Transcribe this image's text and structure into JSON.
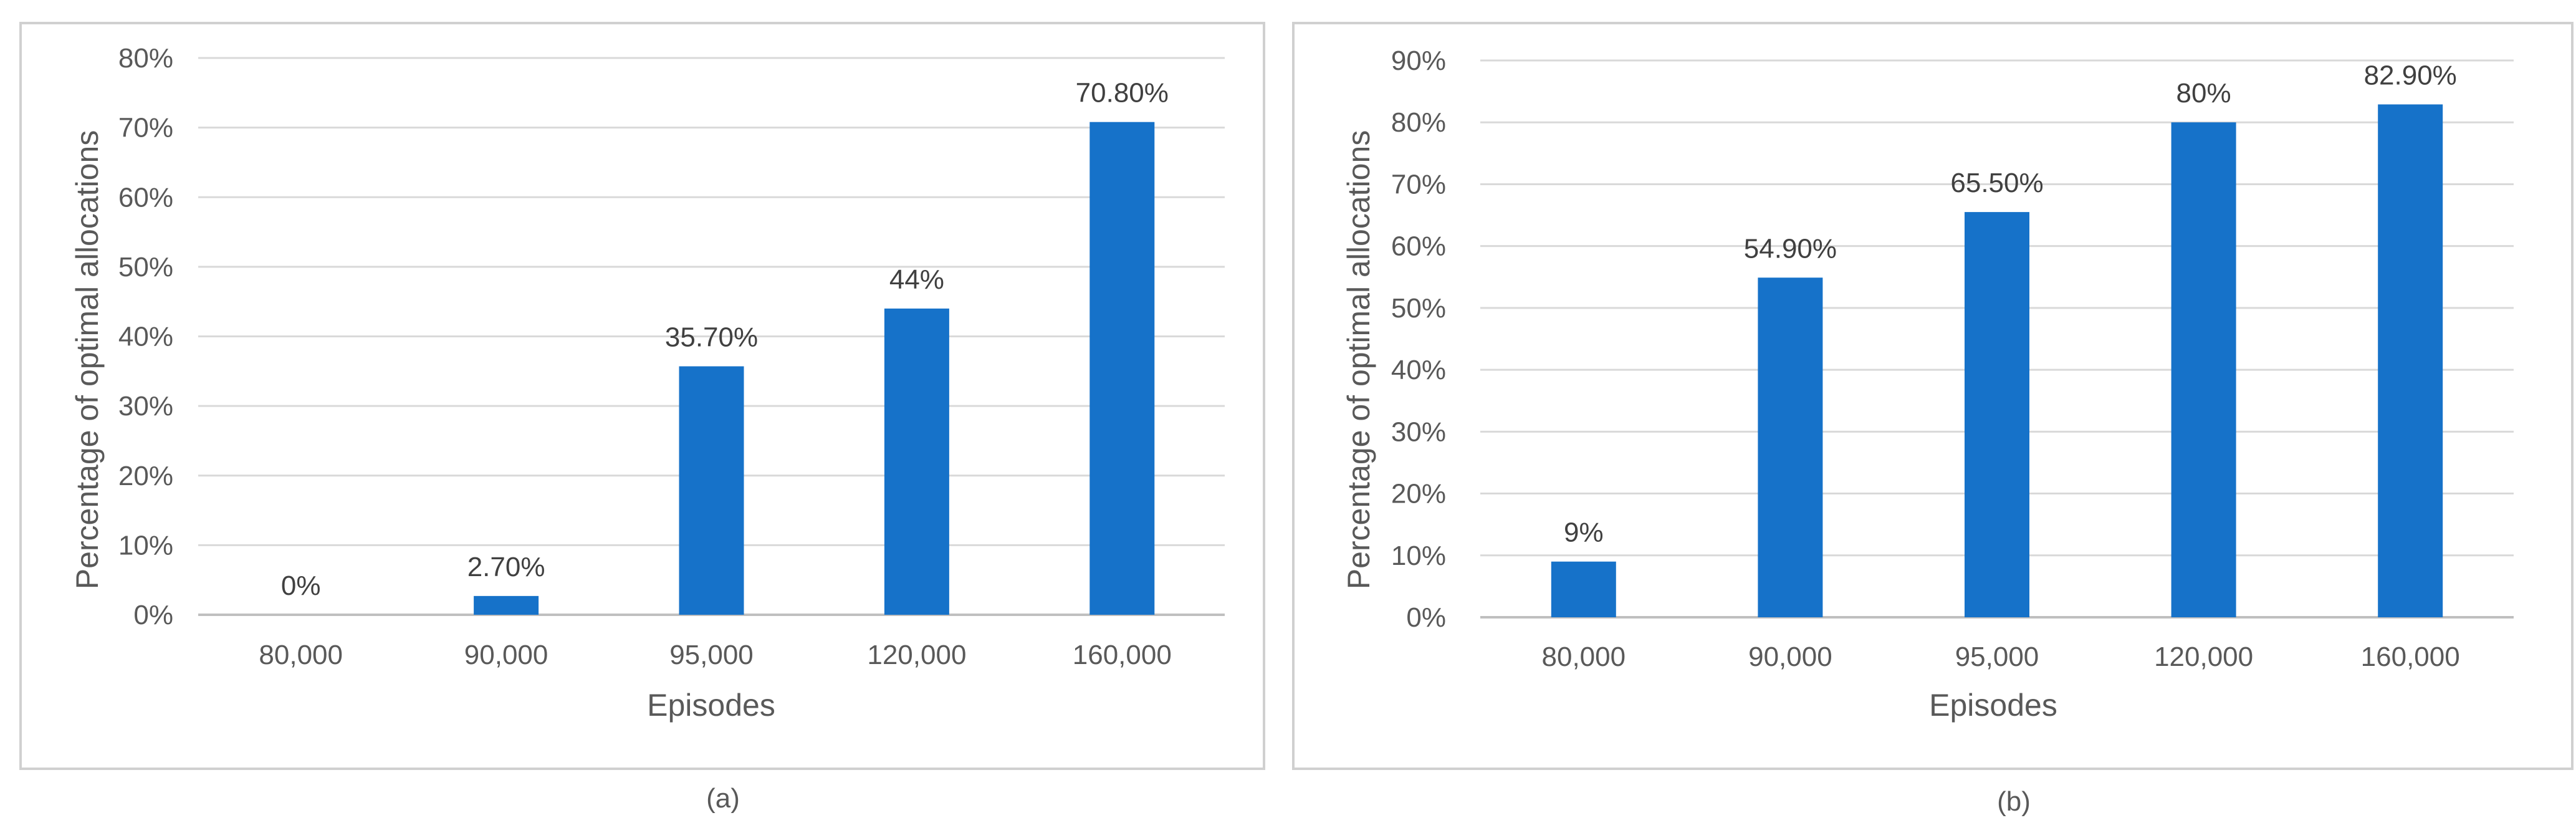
{
  "colors": {
    "bar": "#1672C9"
  },
  "chart_data": [
    {
      "type": "bar",
      "categories": [
        "80,000",
        "90,000",
        "95,000",
        "120,000",
        "160,000"
      ],
      "values": [
        0,
        2.7,
        35.7,
        44,
        70.8
      ],
      "data_labels": [
        "0%",
        "2.70%",
        "35.70%",
        "44%",
        "70.80%"
      ],
      "y_ticks": [
        "0%",
        "10%",
        "20%",
        "30%",
        "40%",
        "50%",
        "60%",
        "70%",
        "80%"
      ],
      "ylim": [
        0,
        80
      ],
      "xlabel": "Episodes",
      "ylabel": "Percentage of optimal allocations",
      "caption": "(a)",
      "grid": true
    },
    {
      "type": "bar",
      "categories": [
        "80,000",
        "90,000",
        "95,000",
        "120,000",
        "160,000"
      ],
      "values": [
        9,
        54.9,
        65.5,
        80,
        82.9
      ],
      "data_labels": [
        "9%",
        "54.90%",
        "65.50%",
        "80%",
        "82.90%"
      ],
      "y_ticks": [
        "0%",
        "10%",
        "20%",
        "30%",
        "40%",
        "50%",
        "60%",
        "70%",
        "80%",
        "90%"
      ],
      "ylim": [
        0,
        90
      ],
      "xlabel": "Episodes",
      "ylabel": "Percentage of optimal allocations",
      "caption": "(b)",
      "grid": true
    }
  ]
}
